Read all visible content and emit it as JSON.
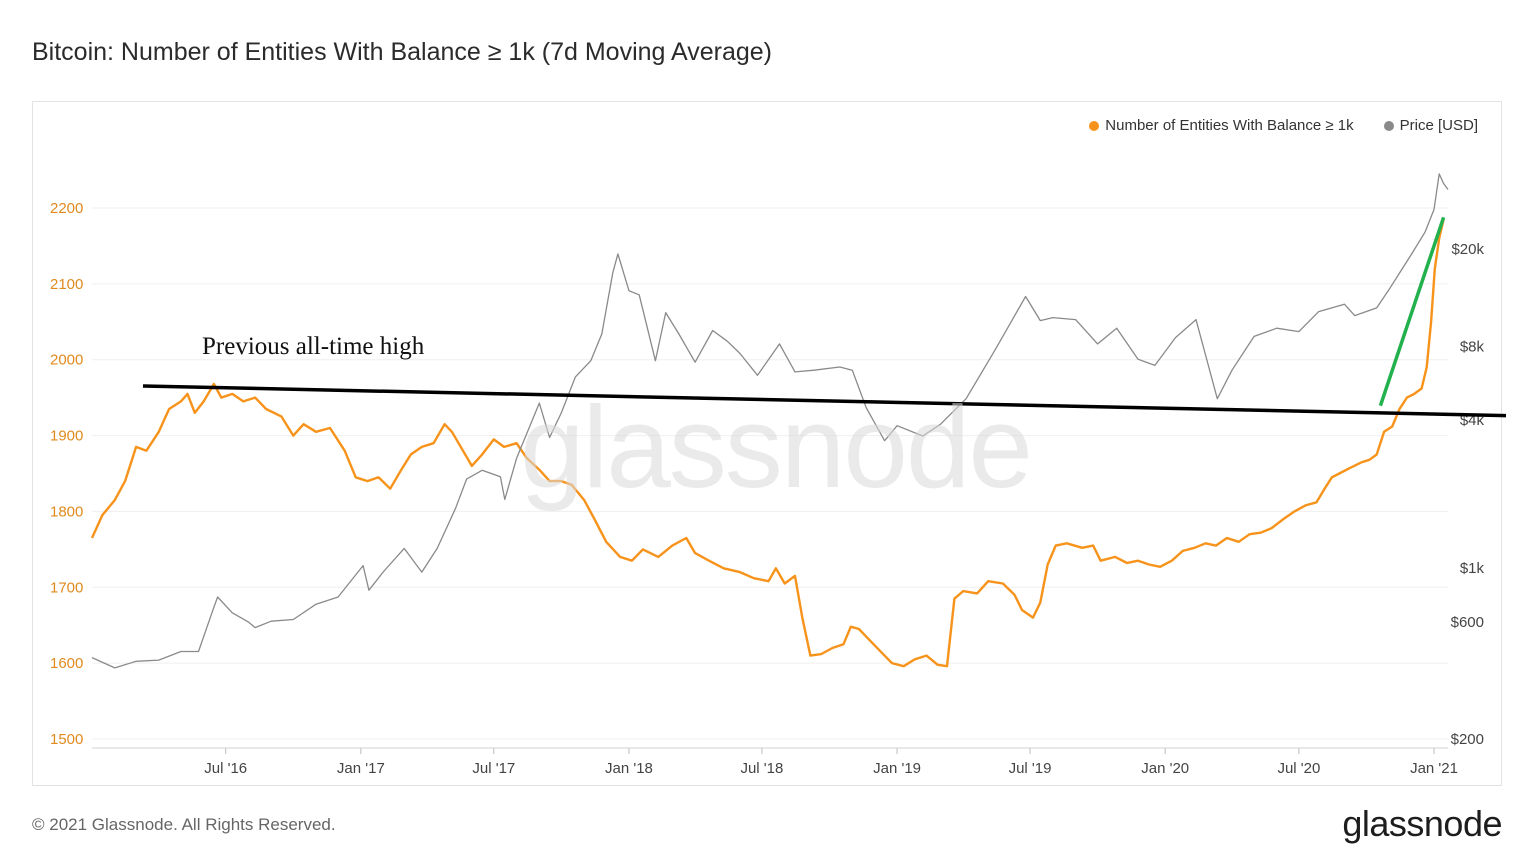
{
  "title": "Bitcoin: Number of Entities With Balance ≥ 1k (7d Moving Average)",
  "footer": "© 2021 Glassnode. All Rights Reserved.",
  "brand": "glassnode",
  "watermark": "glassnode",
  "annotation": "Previous all-time high",
  "colors": {
    "entities": "#f7931a",
    "price": "#8a8a8a",
    "ath_line": "#000000",
    "trend": "#22b14c",
    "left_axis": "#e08a1e"
  },
  "chart_data": {
    "type": "line",
    "title": "Bitcoin: Number of Entities With Balance ≥ 1k (7d Moving Average)",
    "legend": {
      "placement": "top-right",
      "entries": [
        "Number of Entities With Balance ≥ 1k",
        "Price [USD]"
      ]
    },
    "x_ticks": [
      "Jul '16",
      "Jan '17",
      "Jul '17",
      "Jan '18",
      "Jul '18",
      "Jan '19",
      "Jul '19",
      "Jan '20",
      "Jul '20",
      "Jan '21"
    ],
    "y_left": {
      "ticks": [
        "1500",
        "1600",
        "1700",
        "1800",
        "1900",
        "2000",
        "2100",
        "2200"
      ],
      "range": [
        1500,
        2200
      ]
    },
    "y_right": {
      "scale": "log",
      "ticks": [
        "$200",
        "$600",
        "$1k",
        "$4k",
        "$8k",
        "$20k"
      ]
    },
    "x_range": [
      "2016-01-01",
      "2021-01-20"
    ],
    "series": [
      {
        "name": "Number of Entities With Balance ≥ 1k",
        "axis": "left",
        "points": [
          [
            "2016-01-01",
            1765
          ],
          [
            "2016-01-15",
            1795
          ],
          [
            "2016-02-01",
            1815
          ],
          [
            "2016-02-15",
            1840
          ],
          [
            "2016-03-01",
            1885
          ],
          [
            "2016-03-15",
            1880
          ],
          [
            "2016-04-01",
            1905
          ],
          [
            "2016-04-15",
            1935
          ],
          [
            "2016-05-01",
            1945
          ],
          [
            "2016-05-10",
            1955
          ],
          [
            "2016-05-20",
            1930
          ],
          [
            "2016-06-01",
            1945
          ],
          [
            "2016-06-15",
            1968
          ],
          [
            "2016-06-25",
            1950
          ],
          [
            "2016-07-10",
            1955
          ],
          [
            "2016-07-25",
            1945
          ],
          [
            "2016-08-10",
            1950
          ],
          [
            "2016-08-25",
            1935
          ],
          [
            "2016-09-15",
            1925
          ],
          [
            "2016-10-01",
            1900
          ],
          [
            "2016-10-15",
            1915
          ],
          [
            "2016-11-01",
            1905
          ],
          [
            "2016-11-20",
            1910
          ],
          [
            "2016-12-10",
            1880
          ],
          [
            "2016-12-25",
            1845
          ],
          [
            "2017-01-10",
            1840
          ],
          [
            "2017-01-25",
            1845
          ],
          [
            "2017-02-10",
            1830
          ],
          [
            "2017-02-25",
            1855
          ],
          [
            "2017-03-10",
            1875
          ],
          [
            "2017-03-25",
            1885
          ],
          [
            "2017-04-10",
            1890
          ],
          [
            "2017-04-25",
            1915
          ],
          [
            "2017-05-05",
            1905
          ],
          [
            "2017-05-20",
            1880
          ],
          [
            "2017-06-01",
            1860
          ],
          [
            "2017-06-15",
            1875
          ],
          [
            "2017-07-01",
            1895
          ],
          [
            "2017-07-15",
            1885
          ],
          [
            "2017-08-01",
            1890
          ],
          [
            "2017-08-15",
            1870
          ],
          [
            "2017-09-01",
            1855
          ],
          [
            "2017-09-15",
            1840
          ],
          [
            "2017-10-01",
            1840
          ],
          [
            "2017-10-15",
            1835
          ],
          [
            "2017-11-01",
            1815
          ],
          [
            "2017-11-15",
            1790
          ],
          [
            "2017-12-01",
            1760
          ],
          [
            "2017-12-20",
            1740
          ],
          [
            "2018-01-05",
            1735
          ],
          [
            "2018-01-20",
            1750
          ],
          [
            "2018-02-10",
            1740
          ],
          [
            "2018-03-01",
            1755
          ],
          [
            "2018-03-20",
            1765
          ],
          [
            "2018-04-01",
            1745
          ],
          [
            "2018-04-20",
            1735
          ],
          [
            "2018-05-10",
            1725
          ],
          [
            "2018-06-01",
            1720
          ],
          [
            "2018-06-20",
            1712
          ],
          [
            "2018-07-10",
            1708
          ],
          [
            "2018-07-20",
            1725
          ],
          [
            "2018-08-01",
            1705
          ],
          [
            "2018-08-15",
            1715
          ],
          [
            "2018-08-25",
            1660
          ],
          [
            "2018-09-05",
            1610
          ],
          [
            "2018-09-20",
            1612
          ],
          [
            "2018-10-05",
            1620
          ],
          [
            "2018-10-20",
            1625
          ],
          [
            "2018-10-30",
            1648
          ],
          [
            "2018-11-10",
            1645
          ],
          [
            "2018-11-25",
            1630
          ],
          [
            "2018-12-10",
            1615
          ],
          [
            "2018-12-25",
            1600
          ],
          [
            "2019-01-10",
            1596
          ],
          [
            "2019-01-25",
            1605
          ],
          [
            "2019-02-10",
            1610
          ],
          [
            "2019-02-25",
            1598
          ],
          [
            "2019-03-10",
            1596
          ],
          [
            "2019-03-20",
            1685
          ],
          [
            "2019-04-01",
            1695
          ],
          [
            "2019-04-20",
            1692
          ],
          [
            "2019-05-05",
            1708
          ],
          [
            "2019-05-25",
            1705
          ],
          [
            "2019-06-10",
            1690
          ],
          [
            "2019-06-20",
            1670
          ],
          [
            "2019-07-05",
            1660
          ],
          [
            "2019-07-15",
            1680
          ],
          [
            "2019-07-25",
            1730
          ],
          [
            "2019-08-05",
            1755
          ],
          [
            "2019-08-20",
            1758
          ],
          [
            "2019-09-10",
            1752
          ],
          [
            "2019-09-25",
            1755
          ],
          [
            "2019-10-05",
            1735
          ],
          [
            "2019-10-25",
            1740
          ],
          [
            "2019-11-10",
            1732
          ],
          [
            "2019-11-25",
            1735
          ],
          [
            "2019-12-10",
            1730
          ],
          [
            "2019-12-25",
            1727
          ],
          [
            "2020-01-10",
            1735
          ],
          [
            "2020-01-25",
            1748
          ],
          [
            "2020-02-10",
            1752
          ],
          [
            "2020-02-25",
            1758
          ],
          [
            "2020-03-10",
            1755
          ],
          [
            "2020-03-25",
            1765
          ],
          [
            "2020-04-10",
            1760
          ],
          [
            "2020-04-25",
            1770
          ],
          [
            "2020-05-10",
            1772
          ],
          [
            "2020-05-25",
            1778
          ],
          [
            "2020-06-10",
            1790
          ],
          [
            "2020-06-25",
            1800
          ],
          [
            "2020-07-10",
            1808
          ],
          [
            "2020-07-25",
            1812
          ],
          [
            "2020-08-05",
            1830
          ],
          [
            "2020-08-15",
            1845
          ],
          [
            "2020-08-25",
            1850
          ],
          [
            "2020-09-10",
            1858
          ],
          [
            "2020-09-25",
            1865
          ],
          [
            "2020-10-05",
            1868
          ],
          [
            "2020-10-15",
            1875
          ],
          [
            "2020-10-25",
            1905
          ],
          [
            "2020-11-05",
            1912
          ],
          [
            "2020-11-15",
            1935
          ],
          [
            "2020-11-25",
            1950
          ],
          [
            "2020-12-05",
            1955
          ],
          [
            "2020-12-15",
            1962
          ],
          [
            "2020-12-22",
            1990
          ],
          [
            "2020-12-28",
            2050
          ],
          [
            "2021-01-02",
            2120
          ],
          [
            "2021-01-08",
            2160
          ],
          [
            "2021-01-14",
            2185
          ]
        ]
      },
      {
        "name": "Price [USD]",
        "axis": "right",
        "points": [
          [
            "2016-01-01",
            430
          ],
          [
            "2016-02-01",
            390
          ],
          [
            "2016-03-01",
            415
          ],
          [
            "2016-04-01",
            420
          ],
          [
            "2016-05-01",
            455
          ],
          [
            "2016-05-25",
            455
          ],
          [
            "2016-06-15",
            690
          ],
          [
            "2016-06-20",
            760
          ],
          [
            "2016-07-10",
            655
          ],
          [
            "2016-08-01",
            600
          ],
          [
            "2016-08-10",
            570
          ],
          [
            "2016-09-01",
            605
          ],
          [
            "2016-10-01",
            615
          ],
          [
            "2016-11-01",
            710
          ],
          [
            "2016-12-01",
            760
          ],
          [
            "2017-01-04",
            1020
          ],
          [
            "2017-01-12",
            810
          ],
          [
            "2017-02-01",
            965
          ],
          [
            "2017-03-01",
            1200
          ],
          [
            "2017-03-25",
            960
          ],
          [
            "2017-04-15",
            1200
          ],
          [
            "2017-05-10",
            1750
          ],
          [
            "2017-05-25",
            2300
          ],
          [
            "2017-06-15",
            2500
          ],
          [
            "2017-07-10",
            2350
          ],
          [
            "2017-07-16",
            1900
          ],
          [
            "2017-08-01",
            2800
          ],
          [
            "2017-09-01",
            4700
          ],
          [
            "2017-09-15",
            3400
          ],
          [
            "2017-10-01",
            4300
          ],
          [
            "2017-10-20",
            6000
          ],
          [
            "2017-11-10",
            7000
          ],
          [
            "2017-11-25",
            9000
          ],
          [
            "2017-12-10",
            16000
          ],
          [
            "2017-12-17",
            19100
          ],
          [
            "2018-01-01",
            13500
          ],
          [
            "2018-01-15",
            13000
          ],
          [
            "2018-02-06",
            7000
          ],
          [
            "2018-02-20",
            11000
          ],
          [
            "2018-03-10",
            9000
          ],
          [
            "2018-04-01",
            6900
          ],
          [
            "2018-04-25",
            9300
          ],
          [
            "2018-05-15",
            8400
          ],
          [
            "2018-06-01",
            7500
          ],
          [
            "2018-06-25",
            6100
          ],
          [
            "2018-07-25",
            8200
          ],
          [
            "2018-08-15",
            6300
          ],
          [
            "2018-09-10",
            6400
          ],
          [
            "2018-10-15",
            6600
          ],
          [
            "2018-11-01",
            6400
          ],
          [
            "2018-11-20",
            4500
          ],
          [
            "2018-12-15",
            3300
          ],
          [
            "2019-01-01",
            3800
          ],
          [
            "2019-02-05",
            3450
          ],
          [
            "2019-03-01",
            3850
          ],
          [
            "2019-04-05",
            4900
          ],
          [
            "2019-05-15",
            7800
          ],
          [
            "2019-06-25",
            12800
          ],
          [
            "2019-07-15",
            10200
          ],
          [
            "2019-08-01",
            10500
          ],
          [
            "2019-09-01",
            10300
          ],
          [
            "2019-10-01",
            8200
          ],
          [
            "2019-10-27",
            9500
          ],
          [
            "2019-11-25",
            7100
          ],
          [
            "2019-12-18",
            6700
          ],
          [
            "2020-01-15",
            8700
          ],
          [
            "2020-02-12",
            10300
          ],
          [
            "2020-03-12",
            4900
          ],
          [
            "2020-04-01",
            6400
          ],
          [
            "2020-05-01",
            8800
          ],
          [
            "2020-06-01",
            9500
          ],
          [
            "2020-07-01",
            9200
          ],
          [
            "2020-07-28",
            11100
          ],
          [
            "2020-09-01",
            11900
          ],
          [
            "2020-09-15",
            10700
          ],
          [
            "2020-10-15",
            11500
          ],
          [
            "2020-11-01",
            13700
          ],
          [
            "2020-12-01",
            19000
          ],
          [
            "2020-12-20",
            23500
          ],
          [
            "2021-01-01",
            29000
          ],
          [
            "2021-01-08",
            40500
          ],
          [
            "2021-01-14",
            37000
          ],
          [
            "2021-01-20",
            35000
          ]
        ]
      }
    ],
    "annotations": [
      {
        "text": "Previous all-time high",
        "type": "hline",
        "left_value_start": 1968,
        "left_value_end": 1950
      },
      {
        "type": "trendline",
        "from": [
          "2020-10-20",
          1950
        ],
        "to": [
          "2021-01-14",
          2185
        ]
      }
    ]
  }
}
